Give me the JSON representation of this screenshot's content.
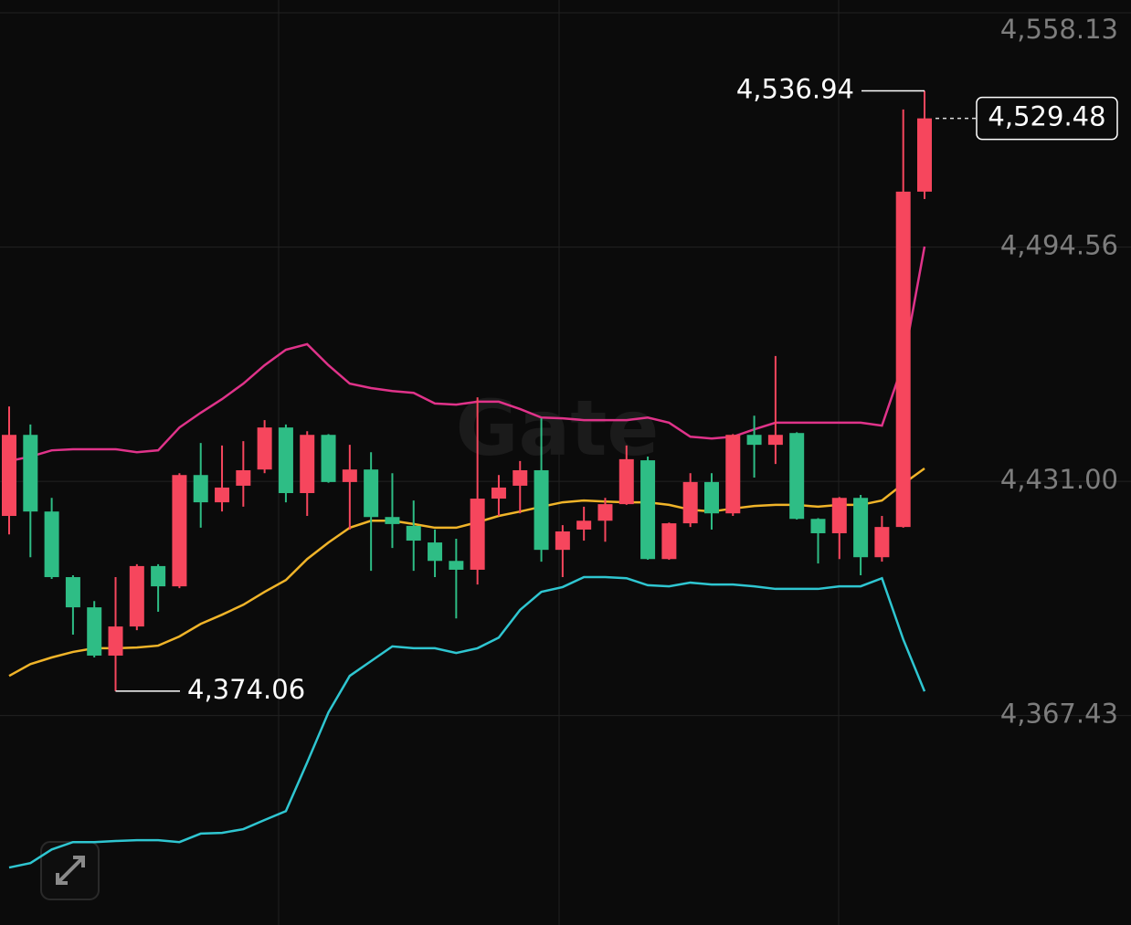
{
  "chart_data": {
    "type": "candlestick",
    "watermark": "Gate",
    "up_color": "#f6465d",
    "down_color": "#2ebd85",
    "grid": true,
    "ylim": [
      4310.6,
      4561.6
    ],
    "yticks": [
      {
        "value": 4558.13,
        "label": "4,558.13"
      },
      {
        "value": 4494.56,
        "label": "4,494.56"
      },
      {
        "value": 4431.0,
        "label": "4,431.00"
      },
      {
        "value": 4367.43,
        "label": "4,367.43"
      }
    ],
    "categories": [
      null,
      null,
      null,
      null,
      null,
      null,
      null,
      null,
      null,
      null,
      null,
      null,
      null,
      null,
      null,
      null,
      null,
      null,
      null,
      null,
      null,
      null,
      null,
      null,
      null,
      null,
      null,
      null,
      null,
      null,
      null,
      null,
      null,
      null,
      null,
      null,
      null,
      null,
      null,
      null,
      null,
      null,
      null,
      null
    ],
    "open": [
      4421.6,
      4443.6,
      4422.8,
      4405.0,
      4396.8,
      4383.7,
      4391.6,
      4408.0,
      4402.5,
      4432.7,
      4425.3,
      4429.8,
      4434.2,
      4445.6,
      4427.8,
      4443.6,
      4430.8,
      4434.2,
      4421.3,
      4418.9,
      4414.4,
      4409.4,
      4407.0,
      4426.3,
      4429.8,
      4434.0,
      4412.4,
      4417.9,
      4420.3,
      4424.8,
      4436.7,
      4409.9,
      4419.6,
      4430.8,
      4422.3,
      4443.6,
      4440.9,
      4444.1,
      4420.8,
      4416.9,
      4426.5,
      4410.4,
      4418.6,
      4509.6
    ],
    "high": [
      4451.3,
      4446.4,
      4426.5,
      4405.5,
      4398.5,
      4405.0,
      4408.5,
      4408.5,
      4433.2,
      4441.4,
      4440.7,
      4441.9,
      4447.6,
      4446.4,
      4444.6,
      4443.8,
      4440.9,
      4438.9,
      4433.2,
      4425.8,
      4417.9,
      4415.4,
      4453.8,
      4432.7,
      4436.5,
      4448.1,
      4419.1,
      4424.1,
      4426.5,
      4440.7,
      4437.7,
      4419.8,
      4433.2,
      4433.2,
      4443.8,
      4448.8,
      4465.0,
      4444.3,
      4421.0,
      4426.7,
      4427.3,
      4421.6,
      4531.9,
      4536.94
    ],
    "low": [
      4416.6,
      4410.4,
      4404.5,
      4389.4,
      4383.2,
      4374.06,
      4390.6,
      4395.6,
      4402.0,
      4418.4,
      4422.8,
      4424.1,
      4433.2,
      4425.3,
      4421.6,
      4430.6,
      4417.9,
      4406.7,
      4412.9,
      4406.7,
      4405.0,
      4393.8,
      4403.0,
      4421.6,
      4422.3,
      4409.2,
      4405.0,
      4414.9,
      4414.6,
      4424.6,
      4409.7,
      4409.7,
      4418.6,
      4417.9,
      4421.6,
      4432.0,
      4435.7,
      4420.6,
      4408.7,
      4409.9,
      4405.5,
      4409.2,
      4418.4,
      4507.6
    ],
    "close": [
      4443.6,
      4422.8,
      4405.0,
      4396.8,
      4383.7,
      4391.6,
      4408.0,
      4402.5,
      4432.7,
      4425.3,
      4429.3,
      4434.0,
      4445.6,
      4427.8,
      4443.6,
      4430.8,
      4434.2,
      4421.3,
      4419.4,
      4414.9,
      4409.4,
      4407.0,
      4426.3,
      4429.3,
      4434.0,
      4412.4,
      4417.4,
      4420.3,
      4424.8,
      4437.0,
      4409.9,
      4419.6,
      4430.8,
      4422.3,
      4443.6,
      4440.9,
      4443.6,
      4420.8,
      4416.9,
      4426.5,
      4410.4,
      4418.6,
      4509.6,
      4529.48
    ],
    "lines": [
      {
        "color": "#e0338a",
        "values": [
          4436.5,
          4437.7,
          4439.4,
          4439.7,
          4439.7,
          4439.7,
          4438.9,
          4439.4,
          4445.6,
          4449.6,
          4453.3,
          4457.5,
          4462.5,
          4466.7,
          4468.2,
          4462.5,
          4457.5,
          4456.3,
          4455.5,
          4455.0,
          4452.1,
          4451.8,
          4452.6,
          4452.6,
          4450.6,
          4448.3,
          4448.1,
          4447.6,
          4447.6,
          4447.6,
          4448.3,
          4446.9,
          4443.1,
          4442.6,
          4443.1,
          4445.1,
          4446.9,
          4446.9,
          4446.9,
          4446.9,
          4446.9,
          4446.1,
          4463.0,
          4494.7
        ]
      },
      {
        "color": "#f0b429",
        "values": [
          4378.2,
          4381.4,
          4383.2,
          4384.7,
          4385.7,
          4385.7,
          4385.9,
          4386.4,
          4388.9,
          4392.3,
          4394.8,
          4397.5,
          4401.0,
          4404.2,
          4409.9,
          4414.4,
          4418.4,
          4420.3,
          4420.3,
          4419.4,
          4418.4,
          4418.4,
          4419.9,
          4421.6,
          4422.8,
          4424.1,
          4425.3,
          4425.8,
          4425.5,
          4425.3,
          4425.3,
          4424.6,
          4423.3,
          4422.8,
          4423.6,
          4424.3,
          4424.6,
          4424.6,
          4424.1,
          4424.6,
          4424.6,
          4425.8,
          4430.3,
          4434.5
        ]
      },
      {
        "color": "#2fc6d1",
        "values": [
          4326.2,
          4327.4,
          4331.1,
          4333.1,
          4333.1,
          4333.4,
          4333.6,
          4333.6,
          4333.1,
          4335.4,
          4335.6,
          4336.6,
          4339.1,
          4341.5,
          4354.7,
          4368.3,
          4378.2,
          4382.2,
          4386.2,
          4385.7,
          4385.7,
          4384.4,
          4385.7,
          4388.6,
          4396.1,
          4401.0,
          4402.3,
          4405.0,
          4405.0,
          4404.7,
          4402.8,
          4402.5,
          4403.5,
          4403.0,
          4403.0,
          4402.5,
          4401.8,
          4401.8,
          4401.8,
          4402.5,
          4402.5,
          4404.7,
          4388.1,
          4374.0
        ]
      }
    ],
    "high_marker": {
      "value": 4536.94,
      "label": "4,536.94"
    },
    "low_marker": {
      "value": 4374.06,
      "label": "4,374.06"
    },
    "last_price": {
      "value": 4529.48,
      "label": "4,529.48"
    }
  }
}
